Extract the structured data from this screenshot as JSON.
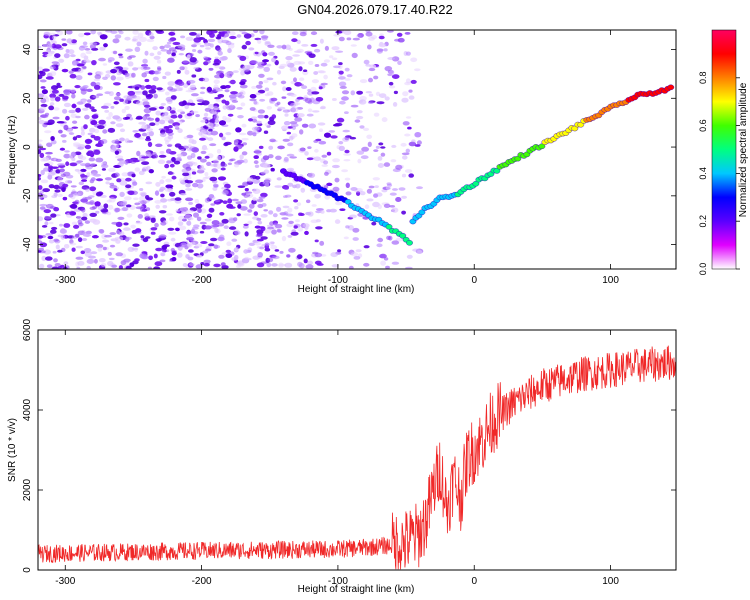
{
  "title": "GN04.2026.079.17.40.R22",
  "colors": {
    "scatter": "#7a10f0",
    "snr_line": "#f02828",
    "colorbar_stops": [
      "#ffffff",
      "#e000ff",
      "#5a00ff",
      "#0000ff",
      "#00c8ff",
      "#00ff80",
      "#40ff00",
      "#ffff00",
      "#ff8000",
      "#ff0000",
      "#ff0060"
    ]
  },
  "chart_data": [
    {
      "id": "spectrogram",
      "type": "heatmap",
      "title": "GN04.2026.079.17.40.R22",
      "xlabel": "Height of straight line (km)",
      "ylabel": "Frequency (Hz)",
      "xlim": [
        -320,
        148
      ],
      "ylim": [
        -50,
        48
      ],
      "xticks": [
        -300,
        -200,
        -100,
        0,
        100
      ],
      "yticks": [
        -40,
        -20,
        0,
        20,
        40
      ],
      "colorbar": {
        "label": "Normalized spectral amplitude",
        "range": [
          0,
          1
        ],
        "ticks": [
          "0.0",
          "0.2",
          "0.4",
          "0.6",
          "0.8"
        ]
      },
      "ridge_descending": {
        "x": [
          -140,
          -125,
          -110,
          -95,
          -80,
          -65,
          -55,
          -47
        ],
        "y": [
          -10,
          -14,
          -18,
          -22,
          -27,
          -32,
          -36,
          -39
        ]
      },
      "ridge_ascending": {
        "x": [
          -45,
          -35,
          -25,
          -15,
          0,
          20,
          40,
          60,
          80,
          100,
          120,
          145
        ],
        "y": [
          -30,
          -25,
          -21,
          -20,
          -15,
          -8,
          -2,
          4,
          10,
          16,
          21,
          24
        ]
      }
    },
    {
      "id": "snr",
      "type": "line",
      "xlabel": "Height of straight line (km)",
      "ylabel": "SNR (10 * v/v)",
      "xlim": [
        -320,
        148
      ],
      "ylim": [
        0,
        6000
      ],
      "xticks": [
        -300,
        -200,
        -100,
        0,
        100
      ],
      "yticks": [
        0,
        2000,
        4000,
        6000
      ],
      "series": [
        {
          "name": "SNR",
          "x": [
            -320,
            -300,
            -250,
            -200,
            -150,
            -100,
            -80,
            -60,
            -50,
            -40,
            -35,
            -30,
            -25,
            -20,
            -15,
            -10,
            -5,
            0,
            5,
            10,
            15,
            20,
            30,
            40,
            50,
            60,
            80,
            100,
            120,
            148
          ],
          "y": [
            400,
            420,
            450,
            480,
            500,
            520,
            560,
            620,
            700,
            900,
            1300,
            2000,
            2600,
            1500,
            2300,
            1800,
            2800,
            3000,
            3200,
            3500,
            3800,
            3900,
            4200,
            4400,
            4600,
            4700,
            4900,
            5000,
            5100,
            5200
          ]
        }
      ]
    }
  ]
}
